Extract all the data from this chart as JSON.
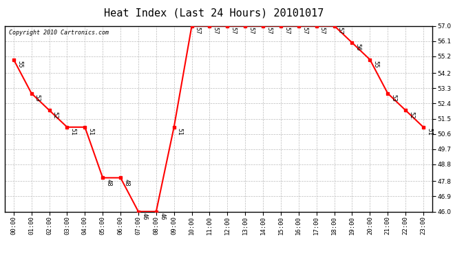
{
  "title": "Heat Index (Last 24 Hours) 20101017",
  "copyright": "Copyright 2010 Cartronics.com",
  "hours": [
    "00:00",
    "01:00",
    "02:00",
    "03:00",
    "04:00",
    "05:00",
    "06:00",
    "07:00",
    "08:00",
    "09:00",
    "10:00",
    "11:00",
    "12:00",
    "13:00",
    "14:00",
    "15:00",
    "16:00",
    "17:00",
    "18:00",
    "19:00",
    "20:00",
    "21:00",
    "22:00",
    "23:00"
  ],
  "values": [
    55,
    53,
    52,
    51,
    51,
    48,
    48,
    46,
    46,
    51,
    57,
    57,
    57,
    57,
    57,
    57,
    57,
    57,
    57,
    56,
    55,
    53,
    52,
    51
  ],
  "line_color": "#ff0000",
  "marker_color": "#ff0000",
  "bg_color": "#ffffff",
  "grid_color": "#bbbbbb",
  "ylim_min": 46.0,
  "ylim_max": 57.0,
  "yticks": [
    46.0,
    46.9,
    47.8,
    48.8,
    49.7,
    50.6,
    51.5,
    52.4,
    53.3,
    54.2,
    55.2,
    56.1,
    57.0
  ],
  "title_fontsize": 11,
  "label_fontsize": 6.5,
  "tick_fontsize": 6.5,
  "copyright_fontsize": 6
}
